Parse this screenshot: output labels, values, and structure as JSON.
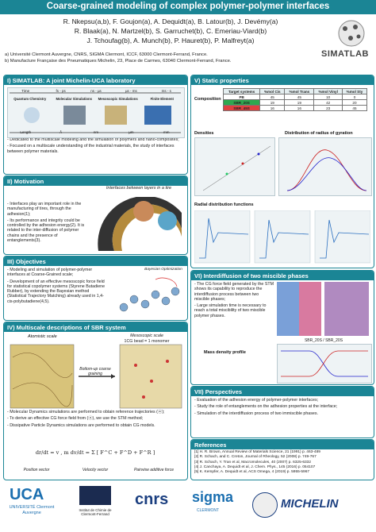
{
  "header": {
    "title": "Coarse-grained modeling of complex polymer-polymer interfaces",
    "authors": [
      "R. Nkepsu(a,b), F. Goujon(a), A. Dequidt(a), B. Latour(b), J. Devémy(a)",
      "R. Blaak(a), N. Martzel(b), S. Garruchet(b), C. Emeriau-Viard(b)",
      "J. Tchoufag(b), A. Munch(b), P. Hauret(b), P. Malfreyt(a)"
    ],
    "affiliations": [
      "a) Université Clermont Auvergne, CNRS, SIGMA Clermont, ICCF, 63000 Clermont-Ferrand, France.",
      "b) Manufacture Française des Pneumatiques Michelin, 23, Place de Carmes, 63040 Clermont-Ferrand, France."
    ],
    "logo": "SIMATLAB"
  },
  "simatlab": {
    "heading": "I) SIMATLAB: A joint Michelin-UCA laboratory",
    "time_labels": [
      "Time",
      "fs - ps",
      "ns - µs",
      "µs - ms",
      "ms - s"
    ],
    "method_labels": [
      "Quantum Chemistry",
      "Molecular Simulations",
      "Mesoscopic Simulations",
      "Finite Element"
    ],
    "length_labels": [
      "Length",
      "Å",
      "nm",
      "µm",
      "mm"
    ],
    "bullets": [
      "Dedicated to the multiscale modeling and the simulation of polymers and nano-composites;",
      "Focused on a multiscale understanding of the industrial materials, the study of interfaces between polymer materials."
    ]
  },
  "motivation": {
    "heading": "II) Motivation",
    "caption": "Interfaces between layers in a tire",
    "bullets": [
      "Interfaces play an important role in the manufacturing of tires, through the adhesion(1);",
      "Its performance and integrity could be controlled by the adhesion energy(2). It is related to the inter-diffusion of polymer chains and the presence of entanglements(3)."
    ]
  },
  "objectives": {
    "heading": "III) Objectives",
    "caption": "Bayesian Optimization",
    "bullets": [
      "Modeling and simulation of polymer-polymer interfaces at Coarse-Grained scale;",
      "Development of an effective mesoscopic force field for statistical copolymer systems (Styrene Butadiene Rubber), by extending the Bayesian method (Statistical Trajectory Matching) already used in 1,4-cis-polybutadiene(4,5)."
    ]
  },
  "multiscale": {
    "heading": "IV) Multiscale descriptions of SBR system",
    "atomistic": "Atomistic scale",
    "mesoscopic": "Mesoscopic scale",
    "bead": "1CG bead = 1 monomer",
    "arrow": "Bottom-up coarse graining",
    "bullets": [
      "Molecular Dynamics simulations are performed to obtain reference trajectories (ⓐ);",
      "To derive an effective CG force field from (ⓐ), we use the STM method;",
      "Dissipative Particle Dynamics simulations are performed to obtain CG models."
    ],
    "formula": "dr/dt = v ,   m dv/dt = Σ [ F^C + F^D + F^R ]",
    "formula_labels": [
      "Position vector",
      "Velocity vector",
      "Pairwise additive force"
    ]
  },
  "static": {
    "heading": "V) Static properties",
    "composition": "Composition",
    "table": {
      "header": [
        "Target systems",
        "%mol Cis",
        "%mol Trans",
        "%mol Vinyl",
        "%mol Sty"
      ],
      "rows": [
        [
          "PB",
          45,
          45,
          10,
          0
        ],
        [
          "SBR_20S",
          19,
          19,
          42,
          20
        ],
        [
          "SBR_45S",
          16,
          16,
          23,
          45
        ]
      ]
    },
    "densities": "Densities",
    "gyration": "Distribution of radius of gyration",
    "rdf": "Radial distribution functions"
  },
  "interdiffusion": {
    "heading": "VI) Interdiffusion of two miscible phases",
    "bullets": [
      "The CG force field generated by the STM shows its capability to reproduce the interdiffusion process between two miscible phases;",
      "Large simulation time is necessary to reach a total miscibility of two miscible polymer phases."
    ],
    "profile": "Mass density profile",
    "plot_title": "SBR_20S / SBR_20S"
  },
  "perspectives": {
    "heading": "VII) Perspectives",
    "bullets": [
      "Evaluation of the adhesion energy of polymer-polymer interfaces;",
      "Study the role of entanglements on the adhesion properties at the interface;",
      "Simulation of the interdiffusion process of two immiscible phases."
    ]
  },
  "references": {
    "heading": "References",
    "items": [
      "[1] H. R. Brown, Annual Review of Materials Science, 21 (1991) p. 463-489",
      "[2] R. Schach, and C. Creton, Journal of Rheology, 52 (2008) p. 749-767",
      "[3] R. Schach, Y. Tran et al, Macromolecules, 40 (2007) p. 6325-6332",
      "[4] J. Canchaya, A. Dequidt et al, J. Chem. Phys., 145 (2016) p. 054107",
      "[5] K. Kempfer, A. Dequidt et al, ACS Omega, 4 (2019) p. 5955-5967"
    ]
  },
  "footer": {
    "uca": "UCA",
    "uca_name": "UNIVERSITÉ Clermont Auvergne",
    "iccf": "Institut de Chimie de Clermont-Ferrand",
    "cnrs": "cnrs",
    "sigma": "sigma",
    "sigma_sub": "CLERMONT",
    "michelin": "MICHELIN"
  }
}
